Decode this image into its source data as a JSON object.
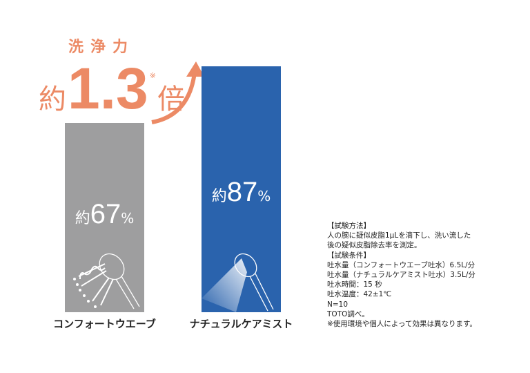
{
  "colors": {
    "gray_bar": "#9e9e9f",
    "blue_bar": "#2a63ad",
    "accent": "#ec8a65"
  },
  "headline": {
    "label": "洗浄力",
    "prefix": "約",
    "value": "1.3",
    "suffix": "倍",
    "mark": "※",
    "icon": "curved-arrow-up-icon"
  },
  "chart_data": {
    "type": "bar",
    "categories": [
      "コンフォートウエーブ",
      "ナチュラルケアミスト"
    ],
    "values": [
      67,
      87
    ],
    "unit": "%",
    "value_prefix": "約",
    "bar_labels": [
      {
        "prefix": "約",
        "num": "67",
        "unit": "%"
      },
      {
        "prefix": "約",
        "num": "87",
        "unit": "%"
      }
    ],
    "icons": [
      "shower-head-wave-spray-icon",
      "shower-head-mist-spray-icon"
    ],
    "ylim": [
      0,
      110
    ]
  },
  "notes": [
    "【試験方法】",
    "人の腕に疑似皮脂1μLを滴下し、洗い流した",
    "後の疑似皮脂除去率を測定。",
    "【試験条件】",
    "吐水量（コンフォートウエーブ吐水）6.5L/分",
    "吐水量（ナチュラルケアミスト吐水）3.5L/分",
    "吐水時間：15 秒",
    "吐水温度：42±1℃",
    "N=10",
    "TOTO調べ。",
    "※使用環境や個人によって効果は異なります。"
  ]
}
